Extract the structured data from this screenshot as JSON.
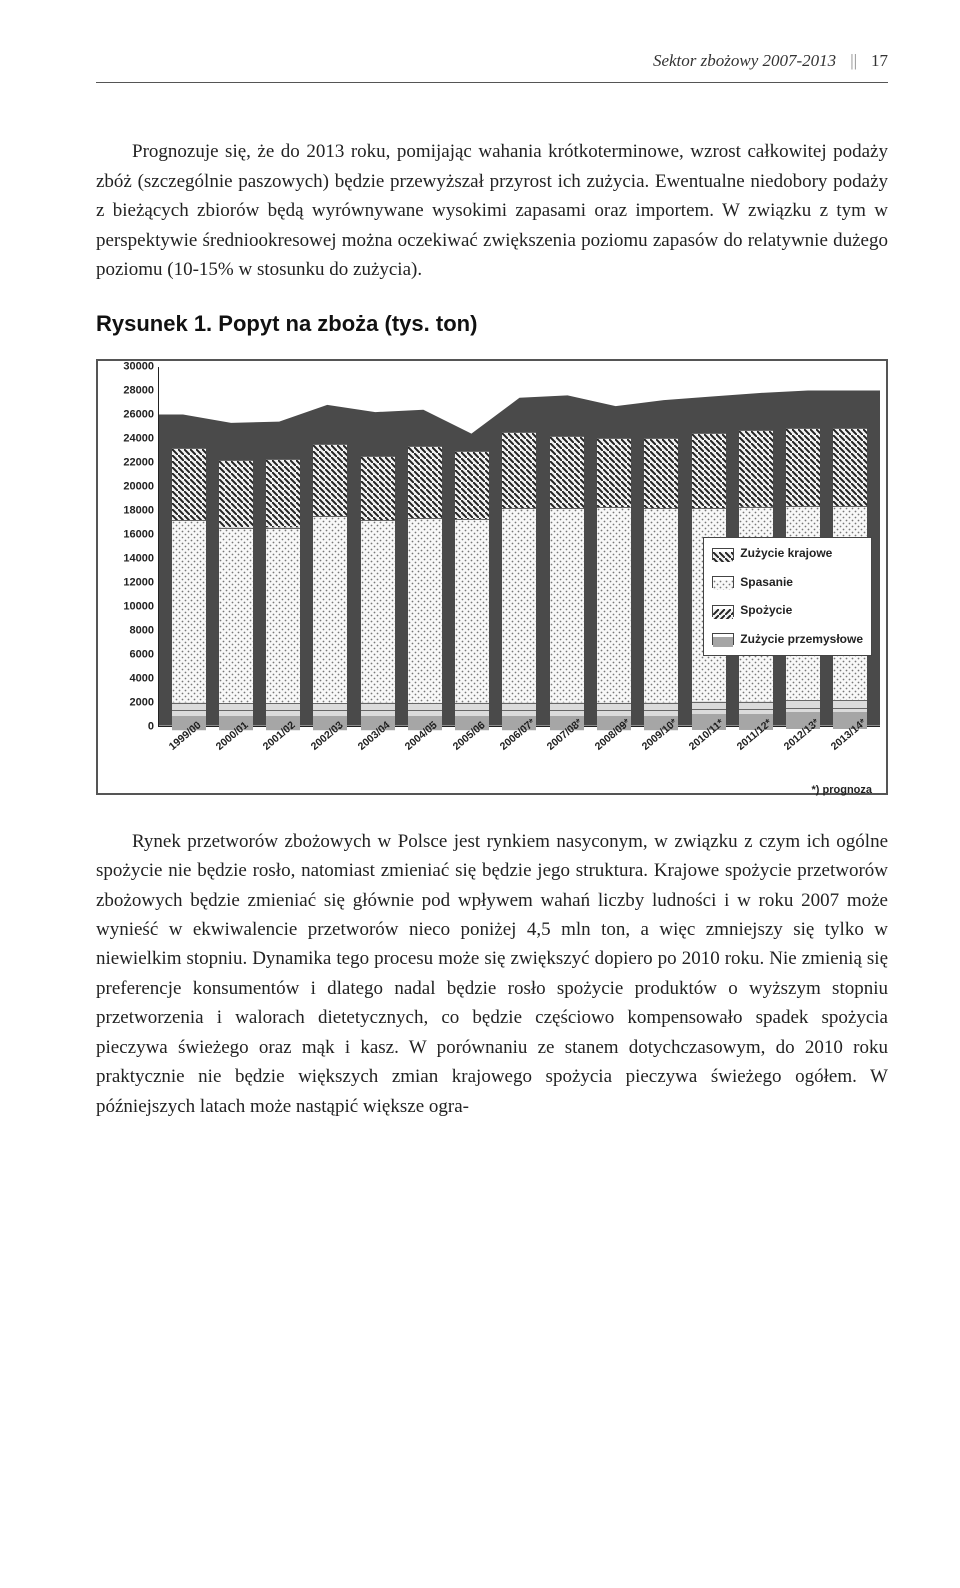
{
  "header": {
    "title": "Sektor zbożowy 2007-2013",
    "separator": "||",
    "page": "17"
  },
  "paragraph1": "Prognozuje się, że do 2013 roku, pomijając wahania krótkoterminowe, wzrost całkowitej podaży zbóż (szczególnie paszowych) będzie przewyższał przyrost ich zużycia. Ewentualne niedobory podaży z bieżących zbiorów będą wyrównywane wysokimi zapasami oraz importem. W związku z tym w perspektywie średniookresowej można oczekiwać zwiększenia poziomu zapasów do relatywnie dużego poziomu (10-15% w stosunku do zużycia).",
  "figure": {
    "title": "Rysunek 1. Popyt na zboża (tys. ton)",
    "ylim": [
      0,
      30000
    ],
    "ytick_step": 2000,
    "categories": [
      "1999/00",
      "2000/01",
      "2001/02",
      "2002/03",
      "2003/04",
      "2004/05",
      "2005/06",
      "2006/07*",
      "2007/08*",
      "2008/09*",
      "2009/10*",
      "2010/11*",
      "2011/12*",
      "2012/13*",
      "2013/14*"
    ],
    "series": [
      {
        "key": "przemyslowe",
        "label": "Zużycie przemysłowe",
        "values": [
          1300,
          1300,
          1300,
          1300,
          1300,
          1300,
          1300,
          1300,
          1300,
          1300,
          1300,
          1400,
          1400,
          1500,
          1500
        ]
      },
      {
        "key": "spozycie",
        "label": "Spożycie",
        "values": [
          600,
          600,
          600,
          600,
          600,
          600,
          600,
          600,
          600,
          600,
          600,
          600,
          600,
          600,
          600
        ]
      },
      {
        "key": "spasanie",
        "label": "Spasanie",
        "values": [
          15200,
          14600,
          14600,
          15600,
          15200,
          15400,
          15300,
          16200,
          16200,
          16300,
          16200,
          16100,
          16200,
          16200,
          16200
        ]
      },
      {
        "key": "krajowe",
        "label": "Zużycie krajowe",
        "values": [
          6000,
          5600,
          5700,
          6000,
          5400,
          6000,
          5700,
          6400,
          6000,
          5800,
          5900,
          6300,
          6400,
          6500,
          6500
        ]
      }
    ],
    "area_totals": [
      26000,
      25300,
      25400,
      26800,
      26200,
      26400,
      24400,
      27400,
      27600,
      26700,
      27200,
      27500,
      27800,
      28000,
      28000
    ],
    "footnote": "*) prognoza",
    "colors": {
      "area_fill": "#4a4a4a",
      "border": "#555555",
      "axis": "#222222",
      "bg": "#ffffff"
    },
    "patterns": {
      "przemyslowe": "horiz",
      "spozycie": "diag",
      "spasanie": "dots",
      "krajowe": "diag2"
    }
  },
  "paragraph2": "Rynek przetworów zbożowych w Polsce jest rynkiem nasyconym, w związku z czym ich ogólne spożycie nie będzie rosło, natomiast zmieniać się będzie jego struktura. Krajowe spożycie przetworów zbożowych będzie zmieniać się głównie pod wpływem wahań liczby ludności i w roku 2007 może wynieść w ekwiwalencie przetworów nieco poniżej 4,5 mln ton, a więc zmniejszy się tylko w niewielkim stopniu. Dynamika tego procesu może się zwiększyć dopiero po 2010 roku. Nie zmienią się preferencje konsumentów i dlatego nadal będzie rosło spożycie produktów o wyższym stopniu przetworzenia i walorach dietetycznych, co będzie częściowo kompensowało spadek spożycia pieczywa świeżego oraz mąk i kasz. W porównaniu ze stanem dotychczasowym, do 2010 roku praktycznie nie będzie większych zmian krajowego spożycia pieczywa świeżego ogółem. W późniejszych latach może nastąpić większe ogra-"
}
